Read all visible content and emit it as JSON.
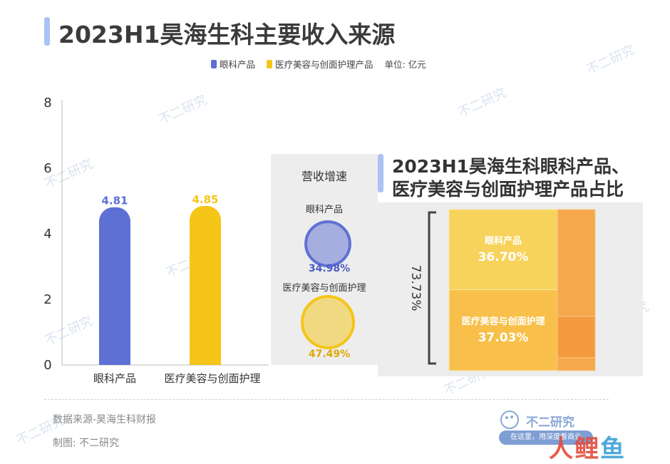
{
  "title": "2023H1昊海生科主要收入来源",
  "legend": {
    "items": [
      {
        "label": "眼科产品",
        "color": "#5f70d4"
      },
      {
        "label": "医疗美容与创面护理产品",
        "color": "#f5c518"
      }
    ],
    "unit": "单位: 亿元"
  },
  "chart_data": [
    {
      "type": "bar",
      "categories": [
        "眼科产品",
        "医疗美容与创面护理"
      ],
      "values": [
        4.81,
        4.85
      ],
      "value_labels": [
        "4.81",
        "4.85"
      ],
      "colors": [
        "#5f70d4",
        "#f5c518"
      ],
      "ylim": [
        0,
        8
      ],
      "yticks": [
        "0",
        "2",
        "4",
        "6",
        "8"
      ]
    },
    {
      "type": "bubble",
      "title": "营收增速",
      "items": [
        {
          "label": "眼科产品",
          "value": 34.98,
          "value_label": "34.98%",
          "color": "#5f70d4"
        },
        {
          "label": "医疗美容与创面护理",
          "value": 47.49,
          "value_label": "47.49%",
          "color": "#f5c518"
        }
      ]
    },
    {
      "type": "treemap",
      "title_lines": [
        "2023H1昊海生科眼科产品、",
        "医疗美容与创面护理产品占比"
      ],
      "bracket_label": "73.73%",
      "items": [
        {
          "label": "眼科产品",
          "value": 36.7,
          "value_label": "36.70%",
          "color": "#f7d35c"
        },
        {
          "label": "医疗美容与创面护理",
          "value": 37.03,
          "value_label": "37.03%",
          "color": "#f8c04a"
        }
      ]
    }
  ],
  "footer": {
    "source": "数据来源-昊海生科财报",
    "made_by": "制图:  不二研究",
    "logo_text": "不二研究",
    "slogan": "在这里，用深度看商业",
    "corner_logo_a": "人鲤",
    "corner_logo_b": "鱼"
  },
  "watermark": "不二研究"
}
